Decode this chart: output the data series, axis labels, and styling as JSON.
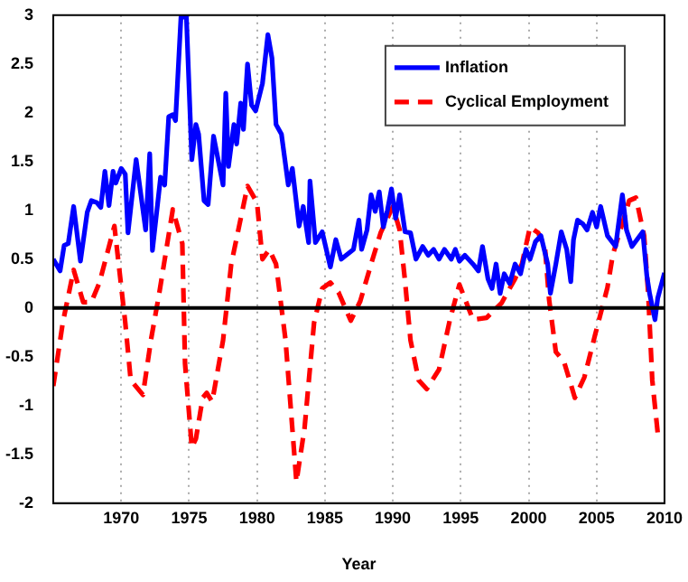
{
  "chart_data": {
    "type": "line",
    "xlabel": "Year",
    "xlim": [
      1965,
      2010
    ],
    "xticks": [
      1970,
      1975,
      1980,
      1985,
      1990,
      1995,
      2000,
      2005,
      2010
    ],
    "ylim": [
      -2,
      3
    ],
    "yticks": [
      -2,
      -1.5,
      -1,
      -0.5,
      0,
      0.5,
      1,
      1.5,
      2,
      2.5,
      3
    ],
    "grid": "x",
    "legend": "top right",
    "marker": "none",
    "ref_lines": [
      {
        "axis": "y",
        "value": 0,
        "color": "#000000"
      }
    ],
    "series": [
      {
        "name": "Inflation",
        "color": "#0000ff",
        "line_style": "solid",
        "x": [
          1965.0,
          1965.5,
          1965.8,
          1966.1,
          1966.5,
          1967.0,
          1967.5,
          1967.8,
          1968.2,
          1968.5,
          1968.8,
          1969.1,
          1969.4,
          1969.6,
          1970.0,
          1970.3,
          1970.5,
          1971.1,
          1971.8,
          1972.1,
          1972.3,
          1972.9,
          1973.2,
          1973.5,
          1973.8,
          1974.0,
          1974.4,
          1974.8,
          1975.2,
          1975.5,
          1975.7,
          1976.1,
          1976.4,
          1976.8,
          1977.5,
          1977.7,
          1977.9,
          1978.3,
          1978.5,
          1978.8,
          1979.0,
          1979.3,
          1979.6,
          1979.9,
          1980.4,
          1980.8,
          1981.1,
          1981.4,
          1981.8,
          1982.3,
          1982.6,
          1983.1,
          1983.4,
          1983.8,
          1983.9,
          1984.3,
          1984.8,
          1985.4,
          1985.8,
          1986.2,
          1987.1,
          1987.5,
          1987.7,
          1988.1,
          1988.4,
          1988.7,
          1989.0,
          1989.3,
          1989.6,
          1989.9,
          1990.2,
          1990.5,
          1990.9,
          1991.3,
          1991.7,
          1992.2,
          1992.6,
          1993.0,
          1993.4,
          1993.8,
          1994.3,
          1994.6,
          1994.9,
          1995.3,
          1995.9,
          1996.3,
          1996.6,
          1997.0,
          1997.3,
          1997.6,
          1997.9,
          1998.2,
          1998.6,
          1999.0,
          1999.4,
          1999.8,
          2000.1,
          2000.5,
          2000.9,
          2001.4,
          2001.6,
          2002.0,
          2002.4,
          2002.8,
          2003.1,
          2003.3,
          2003.6,
          2004.0,
          2004.3,
          2004.7,
          2005.0,
          2005.3,
          2005.8,
          2006.4,
          2006.9,
          2007.2,
          2007.6,
          2008.4,
          2008.7,
          2008.9,
          2009.3,
          2009.5,
          2010.0
        ],
        "values": [
          0.5,
          0.38,
          0.64,
          0.66,
          1.04,
          0.48,
          0.98,
          1.1,
          1.08,
          1.03,
          1.4,
          1.05,
          1.4,
          1.28,
          1.43,
          1.37,
          0.77,
          1.52,
          0.8,
          1.58,
          0.59,
          1.34,
          1.26,
          1.96,
          1.98,
          1.92,
          2.98,
          2.98,
          1.52,
          1.88,
          1.78,
          1.1,
          1.06,
          1.76,
          1.26,
          2.2,
          1.45,
          1.88,
          1.68,
          2.1,
          1.83,
          2.5,
          2.08,
          2.02,
          2.3,
          2.8,
          2.56,
          1.88,
          1.78,
          1.26,
          1.43,
          0.84,
          1.04,
          0.67,
          1.3,
          0.67,
          0.78,
          0.42,
          0.7,
          0.5,
          0.6,
          0.9,
          0.6,
          0.8,
          1.16,
          0.99,
          1.19,
          0.83,
          1.0,
          1.22,
          0.92,
          1.16,
          0.78,
          0.77,
          0.5,
          0.63,
          0.54,
          0.6,
          0.5,
          0.6,
          0.5,
          0.6,
          0.48,
          0.54,
          0.45,
          0.38,
          0.63,
          0.3,
          0.2,
          0.45,
          0.15,
          0.35,
          0.25,
          0.45,
          0.35,
          0.6,
          0.5,
          0.68,
          0.74,
          0.45,
          0.15,
          0.45,
          0.78,
          0.6,
          0.27,
          0.7,
          0.9,
          0.86,
          0.8,
          0.98,
          0.83,
          1.04,
          0.74,
          0.63,
          1.16,
          0.8,
          0.63,
          0.78,
          0.33,
          0.15,
          -0.12,
          0.1,
          0.36
        ]
      },
      {
        "name": "Cyclical Employment",
        "color": "#ff0000",
        "line_style": "dashed",
        "x": [
          1965.0,
          1965.7,
          1966.5,
          1967.2,
          1967.8,
          1968.4,
          1969.5,
          1970.3,
          1970.7,
          1971.6,
          1972.2,
          1972.8,
          1973.8,
          1974.5,
          1974.7,
          1975.2,
          1975.5,
          1976.0,
          1976.3,
          1976.7,
          1977.5,
          1978.1,
          1979.3,
          1980.0,
          1980.4,
          1980.9,
          1981.4,
          1982.1,
          1982.9,
          1983.5,
          1984.2,
          1984.8,
          1985.4,
          1986.0,
          1986.9,
          1987.6,
          1988.4,
          1989.1,
          1990.0,
          1990.5,
          1990.9,
          1991.3,
          1991.9,
          1992.5,
          1993.4,
          1994.2,
          1994.9,
          1995.9,
          1996.9,
          1998.0,
          1999.0,
          1999.5,
          2000.1,
          2000.7,
          2001.2,
          2001.5,
          2002.0,
          2002.6,
          2003.4,
          2004.1,
          2004.9,
          2005.8,
          2006.2,
          2006.8,
          2007.4,
          2007.9,
          2008.5,
          2008.8,
          2009.1,
          2009.5,
          2010.0
        ],
        "values": [
          -0.8,
          -0.15,
          0.39,
          0.06,
          0.06,
          0.26,
          0.84,
          -0.15,
          -0.74,
          -0.89,
          -0.32,
          0.15,
          1.01,
          0.66,
          -0.57,
          -1.43,
          -1.34,
          -0.92,
          -0.87,
          -0.96,
          -0.33,
          0.45,
          1.25,
          1.08,
          0.5,
          0.6,
          0.45,
          -0.33,
          -1.78,
          -1.23,
          -0.15,
          0.2,
          0.26,
          0.16,
          -0.13,
          0.07,
          0.45,
          0.77,
          1.04,
          0.8,
          0.27,
          -0.33,
          -0.74,
          -0.83,
          -0.63,
          -0.12,
          0.24,
          -0.12,
          -0.1,
          0.05,
          0.3,
          0.45,
          0.83,
          0.77,
          0.62,
          0.09,
          -0.45,
          -0.55,
          -0.92,
          -0.71,
          -0.27,
          0.21,
          0.55,
          0.82,
          1.1,
          1.13,
          0.74,
          0.15,
          -0.74,
          -1.28,
          -1.25
        ]
      }
    ]
  }
}
